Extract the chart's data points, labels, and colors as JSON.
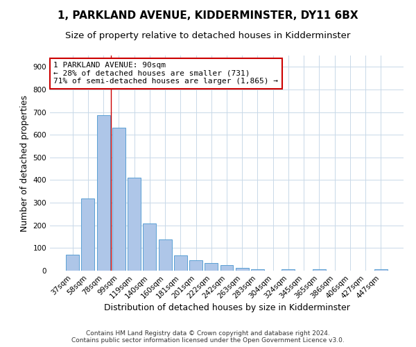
{
  "title": "1, PARKLAND AVENUE, KIDDERMINSTER, DY11 6BX",
  "subtitle": "Size of property relative to detached houses in Kidderminster",
  "xlabel": "Distribution of detached houses by size in Kidderminster",
  "ylabel": "Number of detached properties",
  "footnote1": "Contains HM Land Registry data © Crown copyright and database right 2024.",
  "footnote2": "Contains public sector information licensed under the Open Government Licence v3.0.",
  "categories": [
    "37sqm",
    "58sqm",
    "78sqm",
    "99sqm",
    "119sqm",
    "140sqm",
    "160sqm",
    "181sqm",
    "201sqm",
    "222sqm",
    "242sqm",
    "263sqm",
    "283sqm",
    "304sqm",
    "324sqm",
    "345sqm",
    "365sqm",
    "386sqm",
    "406sqm",
    "427sqm",
    "447sqm"
  ],
  "values": [
    70,
    320,
    685,
    630,
    410,
    208,
    137,
    68,
    47,
    35,
    23,
    12,
    7,
    0,
    7,
    0,
    7,
    0,
    0,
    0,
    7
  ],
  "bar_color": "#aec6e8",
  "bar_edge_color": "#5a9fd4",
  "vline_x_index": 2,
  "vline_color": "#cc0000",
  "annotation_line1": "1 PARKLAND AVENUE: 90sqm",
  "annotation_line2": "← 28% of detached houses are smaller (731)",
  "annotation_line3": "71% of semi-detached houses are larger (1,865) →",
  "annotation_box_color": "#ffffff",
  "annotation_box_edge": "#cc0000",
  "ylim": [
    0,
    950
  ],
  "yticks": [
    0,
    100,
    200,
    300,
    400,
    500,
    600,
    700,
    800,
    900
  ],
  "bg_color": "#ffffff",
  "grid_color": "#c8d8e8",
  "title_fontsize": 11,
  "subtitle_fontsize": 9.5,
  "xlabel_fontsize": 9,
  "ylabel_fontsize": 9,
  "tick_fontsize": 7.5,
  "annotation_fontsize": 8,
  "footnote_fontsize": 6.5
}
